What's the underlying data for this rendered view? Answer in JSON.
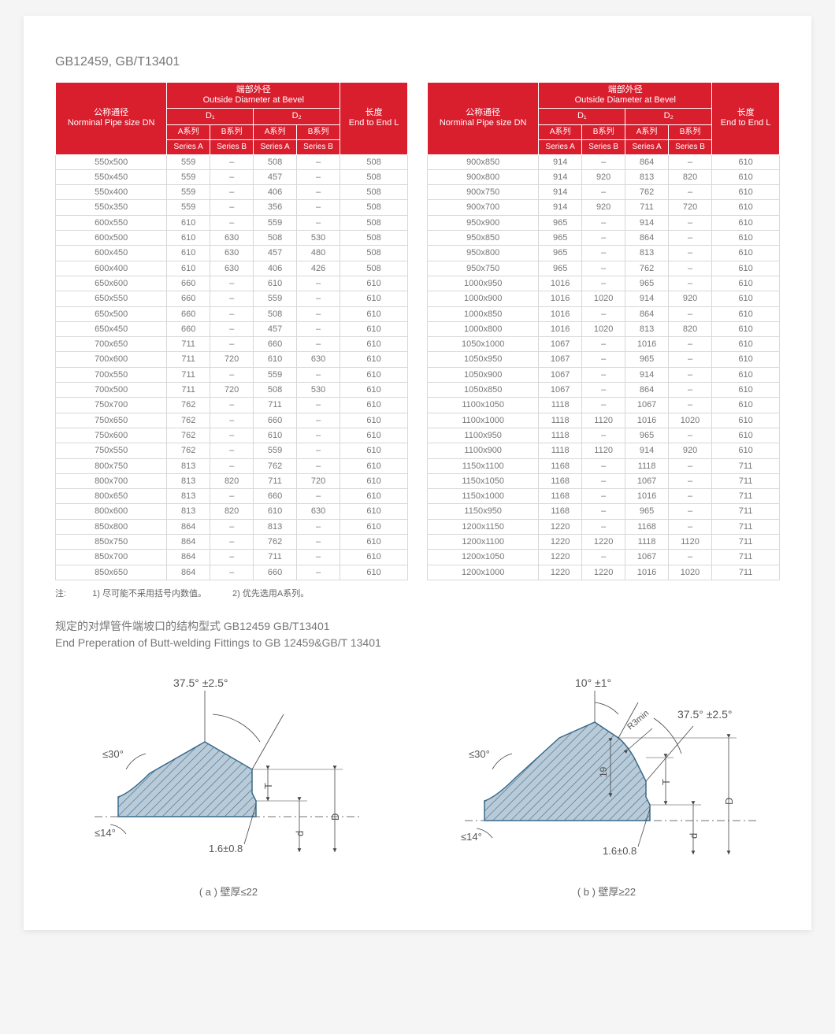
{
  "page_title": "GB12459, GB/T13401",
  "header": {
    "col_pipe_cn": "公称通径",
    "col_pipe_en": "Norminal Pipe size DN",
    "col_od_cn": "端部外径",
    "col_od_en": "Outside Diameter at Bevel",
    "col_len_cn": "长度",
    "col_len_en": "End to End L",
    "d1": "D₁",
    "d2": "D₂",
    "a_cn": "A系列",
    "b_cn": "B系列",
    "a_en": "Series A",
    "b_en": "Series B"
  },
  "colors": {
    "header_bg": "#d91e2e",
    "border": "#d8d8d8",
    "text": "#777777",
    "hatch_fill": "#b9cbd8",
    "hatch_line": "#3a6a8a",
    "dim_line": "#444444"
  },
  "table_left": [
    [
      "550x500",
      "559",
      "–",
      "508",
      "–",
      "508"
    ],
    [
      "550x450",
      "559",
      "–",
      "457",
      "–",
      "508"
    ],
    [
      "550x400",
      "559",
      "–",
      "406",
      "–",
      "508"
    ],
    [
      "550x350",
      "559",
      "–",
      "356",
      "–",
      "508"
    ],
    [
      "600x550",
      "610",
      "–",
      "559",
      "–",
      "508"
    ],
    [
      "600x500",
      "610",
      "630",
      "508",
      "530",
      "508"
    ],
    [
      "600x450",
      "610",
      "630",
      "457",
      "480",
      "508"
    ],
    [
      "600x400",
      "610",
      "630",
      "406",
      "426",
      "508"
    ],
    [
      "650x600",
      "660",
      "–",
      "610",
      "–",
      "610"
    ],
    [
      "650x550",
      "660",
      "–",
      "559",
      "–",
      "610"
    ],
    [
      "650x500",
      "660",
      "–",
      "508",
      "–",
      "610"
    ],
    [
      "650x450",
      "660",
      "–",
      "457",
      "–",
      "610"
    ],
    [
      "700x650",
      "711",
      "–",
      "660",
      "–",
      "610"
    ],
    [
      "700x600",
      "711",
      "720",
      "610",
      "630",
      "610"
    ],
    [
      "700x550",
      "711",
      "–",
      "559",
      "–",
      "610"
    ],
    [
      "700x500",
      "711",
      "720",
      "508",
      "530",
      "610"
    ],
    [
      "750x700",
      "762",
      "–",
      "711",
      "–",
      "610"
    ],
    [
      "750x650",
      "762",
      "–",
      "660",
      "–",
      "610"
    ],
    [
      "750x600",
      "762",
      "–",
      "610",
      "–",
      "610"
    ],
    [
      "750x550",
      "762",
      "–",
      "559",
      "–",
      "610"
    ],
    [
      "800x750",
      "813",
      "–",
      "762",
      "–",
      "610"
    ],
    [
      "800x700",
      "813",
      "820",
      "711",
      "720",
      "610"
    ],
    [
      "800x650",
      "813",
      "–",
      "660",
      "–",
      "610"
    ],
    [
      "800x600",
      "813",
      "820",
      "610",
      "630",
      "610"
    ],
    [
      "850x800",
      "864",
      "–",
      "813",
      "–",
      "610"
    ],
    [
      "850x750",
      "864",
      "–",
      "762",
      "–",
      "610"
    ],
    [
      "850x700",
      "864",
      "–",
      "711",
      "–",
      "610"
    ],
    [
      "850x650",
      "864",
      "–",
      "660",
      "–",
      "610"
    ]
  ],
  "table_right": [
    [
      "900x850",
      "914",
      "–",
      "864",
      "–",
      "610"
    ],
    [
      "900x800",
      "914",
      "920",
      "813",
      "820",
      "610"
    ],
    [
      "900x750",
      "914",
      "–",
      "762",
      "–",
      "610"
    ],
    [
      "900x700",
      "914",
      "920",
      "711",
      "720",
      "610"
    ],
    [
      "950x900",
      "965",
      "–",
      "914",
      "–",
      "610"
    ],
    [
      "950x850",
      "965",
      "–",
      "864",
      "–",
      "610"
    ],
    [
      "950x800",
      "965",
      "–",
      "813",
      "–",
      "610"
    ],
    [
      "950x750",
      "965",
      "–",
      "762",
      "–",
      "610"
    ],
    [
      "1000x950",
      "1016",
      "–",
      "965",
      "–",
      "610"
    ],
    [
      "1000x900",
      "1016",
      "1020",
      "914",
      "920",
      "610"
    ],
    [
      "1000x850",
      "1016",
      "–",
      "864",
      "–",
      "610"
    ],
    [
      "1000x800",
      "1016",
      "1020",
      "813",
      "820",
      "610"
    ],
    [
      "1050x1000",
      "1067",
      "–",
      "1016",
      "–",
      "610"
    ],
    [
      "1050x950",
      "1067",
      "–",
      "965",
      "–",
      "610"
    ],
    [
      "1050x900",
      "1067",
      "–",
      "914",
      "–",
      "610"
    ],
    [
      "1050x850",
      "1067",
      "–",
      "864",
      "–",
      "610"
    ],
    [
      "1100x1050",
      "1118",
      "–",
      "1067",
      "–",
      "610"
    ],
    [
      "1100x1000",
      "1118",
      "1120",
      "1016",
      "1020",
      "610"
    ],
    [
      "1100x950",
      "1118",
      "–",
      "965",
      "–",
      "610"
    ],
    [
      "1100x900",
      "1118",
      "1120",
      "914",
      "920",
      "610"
    ],
    [
      "1150x1100",
      "1168",
      "–",
      "1118",
      "–",
      "711"
    ],
    [
      "1150x1050",
      "1168",
      "–",
      "1067",
      "–",
      "711"
    ],
    [
      "1150x1000",
      "1168",
      "–",
      "1016",
      "–",
      "711"
    ],
    [
      "1150x950",
      "1168",
      "–",
      "965",
      "–",
      "711"
    ],
    [
      "1200x1150",
      "1220",
      "–",
      "1168",
      "–",
      "711"
    ],
    [
      "1200x1100",
      "1220",
      "1220",
      "1118",
      "1120",
      "711"
    ],
    [
      "1200x1050",
      "1220",
      "–",
      "1067",
      "–",
      "711"
    ],
    [
      "1200x1000",
      "1220",
      "1220",
      "1016",
      "1020",
      "711"
    ]
  ],
  "notes": {
    "prefix": "注:",
    "n1": "1) 尽可能不采用括号内数值。",
    "n2": "2) 优先选用A系列。"
  },
  "section2": {
    "cn": "规定的对焊管件端坡口的结构型式 GB12459  GB/T13401",
    "en": "End Preperation of Butt-welding Fittings to GB 12459&GB/T 13401"
  },
  "diagram_a": {
    "angle_top": "37.5°  ±2.5°",
    "angle_left1": "≤30°",
    "angle_left2": "≤14°",
    "root": "1.6±0.8",
    "dims": [
      "T",
      "d",
      "D"
    ],
    "caption": "( a ) 壁厚≤22"
  },
  "diagram_b": {
    "angle_top1": "10°  ±1°",
    "angle_top2": "37.5°  ±2.5°",
    "angle_left1": "≤30°",
    "angle_left2": "≤14°",
    "r3": "R3min",
    "nineteen": "19",
    "root": "1.6±0.8",
    "dims": [
      "T",
      "d",
      "D"
    ],
    "caption": "( b ) 壁厚≥22"
  }
}
